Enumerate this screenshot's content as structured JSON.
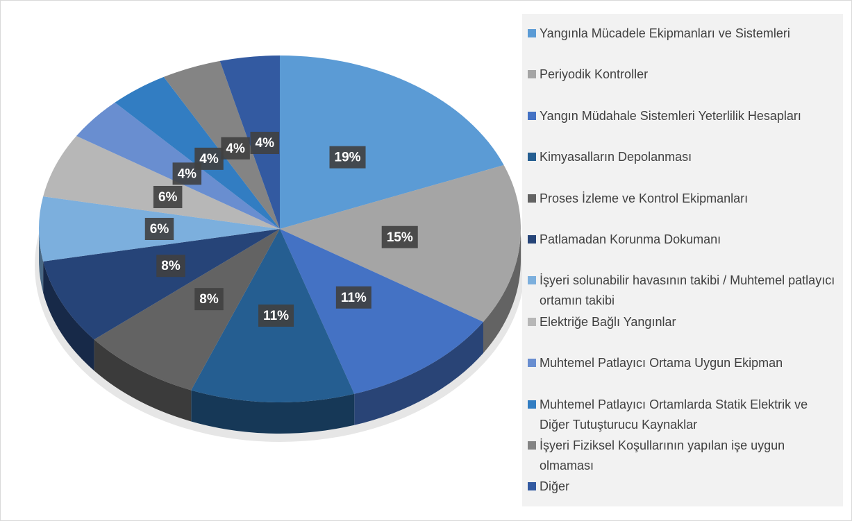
{
  "chart_data": {
    "type": "pie3d",
    "categories": [
      "Yangınla Mücadele Ekipmanları ve Sistemleri",
      "Periyodik Kontroller",
      "Yangın Müdahale Sistemleri Yeterlilik Hesapları",
      "Kimyasalların Depolanması",
      "Proses İzleme ve Kontrol Ekipmanları",
      "Patlamadan Korunma Dokumanı",
      "İşyeri solunabilir havasının takibi / Muhtemel patlayıcı ortamın takibi",
      "Elektriğe Bağlı Yangınlar",
      "Muhtemel Patlayıcı Ortama Uygun Ekipman",
      "Muhtemel Patlayıcı Ortamlarda Statik Elektrik ve Diğer Tutuşturucu Kaynaklar",
      "İşyeri Fiziksel Koşullarının  yapılan işe uygun olmaması",
      "Diğer"
    ],
    "values": [
      19,
      15,
      11,
      11,
      8,
      8,
      6,
      6,
      4,
      4,
      4,
      4
    ],
    "value_labels": [
      "19%",
      "15%",
      "11%",
      "11%",
      "8%",
      "8%",
      "6%",
      "6%",
      "4%",
      "4%",
      "4%",
      "4%"
    ],
    "colors": [
      "#5b9bd5",
      "#a5a5a5",
      "#4472c4",
      "#255e91",
      "#636363",
      "#264478",
      "#7cafdd",
      "#b7b7b7",
      "#698ed0",
      "#327dc2",
      "#848484",
      "#335aa1"
    ],
    "legend": "right"
  }
}
